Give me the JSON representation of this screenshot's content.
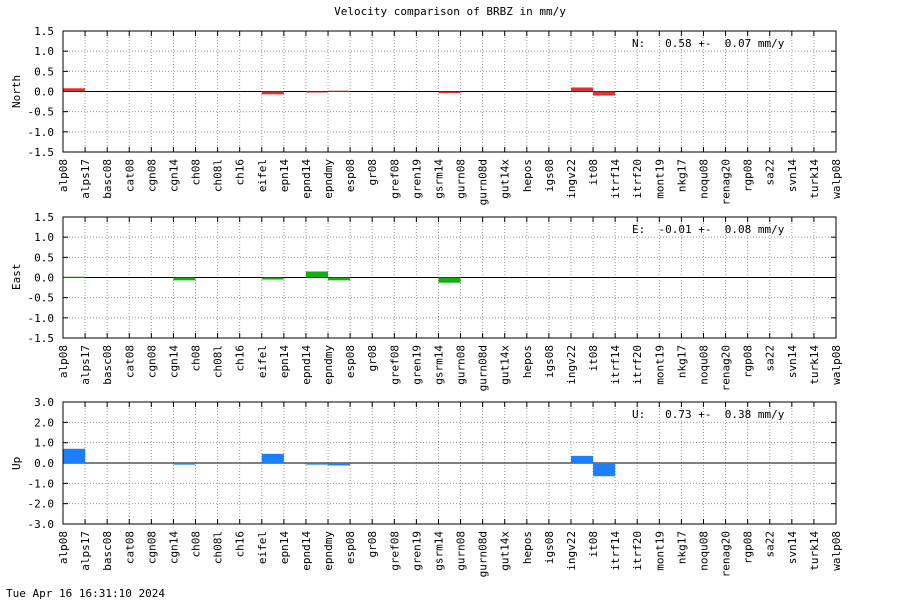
{
  "title": "Velocity comparison of BRBZ in mm/y",
  "footer": "Tue Apr 16 16:31:10 2024",
  "colors": {
    "north": "#e03030",
    "east": "#10b010",
    "up": "#1a80ff",
    "grid": "#999999"
  },
  "chart_data": [
    {
      "type": "bar",
      "ylabel": "North",
      "ylim": [
        -1.5,
        1.5
      ],
      "yticks": [
        "-1.5",
        "-1.0",
        "-0.5",
        "0.0",
        "0.5",
        "1.0",
        "1.5"
      ],
      "stat": "N:   0.58 +-  0.07 mm/y",
      "categories": [
        "alp08",
        "alps17",
        "basc08",
        "cat08",
        "cgn08",
        "cgn14",
        "ch08",
        "ch08l",
        "ch16",
        "eifel",
        "epn14",
        "epnd14",
        "epndmy",
        "esp08",
        "gr08",
        "gref08",
        "gren19",
        "gsrm14",
        "gurn08",
        "gurn08d",
        "gut14x",
        "hepos",
        "igs08",
        "ingv22",
        "it08",
        "itrf14",
        "itrf20",
        "mont19",
        "nkg17",
        "noqu08",
        "renag20",
        "rgp08",
        "sa22",
        "svn14",
        "turk14",
        "walp08"
      ],
      "values": [
        0.08,
        0,
        0,
        0,
        0,
        0,
        0,
        0,
        0,
        -0.07,
        0,
        -0.02,
        0.02,
        0,
        0,
        0,
        0,
        -0.04,
        0,
        0,
        0,
        0,
        0,
        0.1,
        -0.1,
        0,
        0,
        0,
        0,
        0,
        0,
        0,
        0,
        0,
        0,
        0
      ]
    },
    {
      "type": "bar",
      "ylabel": "East",
      "ylim": [
        -1.5,
        1.5
      ],
      "yticks": [
        "-1.5",
        "-1.0",
        "-0.5",
        "0.0",
        "0.5",
        "1.0",
        "1.5"
      ],
      "stat": "E:  -0.01 +-  0.08 mm/y",
      "categories": [
        "alp08",
        "alps17",
        "basc08",
        "cat08",
        "cgn08",
        "cgn14",
        "ch08",
        "ch08l",
        "ch16",
        "eifel",
        "epn14",
        "epnd14",
        "epndmy",
        "esp08",
        "gr08",
        "gref08",
        "gren19",
        "gsrm14",
        "gurn08",
        "gurn08d",
        "gut14x",
        "hepos",
        "igs08",
        "ingv22",
        "it08",
        "itrf14",
        "itrf20",
        "mont19",
        "nkg17",
        "noqu08",
        "renag20",
        "rgp08",
        "sa22",
        "svn14",
        "turk14",
        "walp08"
      ],
      "values": [
        0.02,
        0,
        0,
        0,
        0,
        -0.07,
        0,
        0,
        0,
        -0.05,
        0,
        0.15,
        -0.07,
        0,
        0,
        0,
        0,
        -0.13,
        0,
        0,
        0,
        0,
        0,
        0,
        0,
        0,
        0,
        0,
        0,
        0,
        0,
        0,
        0,
        0,
        0,
        0
      ]
    },
    {
      "type": "bar",
      "ylabel": "Up",
      "ylim": [
        -3.0,
        3.0
      ],
      "yticks": [
        "-3.0",
        "-2.0",
        "-1.0",
        "0.0",
        "1.0",
        "2.0",
        "3.0"
      ],
      "stat": "U:   0.73 +-  0.38 mm/y",
      "categories": [
        "alp08",
        "alps17",
        "basc08",
        "cat08",
        "cgn08",
        "cgn14",
        "ch08",
        "ch08l",
        "ch16",
        "eifel",
        "epn14",
        "epnd14",
        "epndmy",
        "esp08",
        "gr08",
        "gref08",
        "gren19",
        "gsrm14",
        "gurn08",
        "gurn08d",
        "gut14x",
        "hepos",
        "igs08",
        "ingv22",
        "it08",
        "itrf14",
        "itrf20",
        "mont19",
        "nkg17",
        "noqu08",
        "renag20",
        "rgp08",
        "sa22",
        "svn14",
        "turk14",
        "walp08"
      ],
      "values": [
        0.7,
        0,
        0,
        0,
        0,
        -0.08,
        0,
        0,
        0,
        0.45,
        0,
        -0.08,
        -0.12,
        0,
        0,
        0,
        0,
        0,
        0,
        0,
        0,
        0,
        0,
        0.35,
        -0.65,
        0,
        0,
        0,
        0,
        0,
        0,
        0,
        0,
        0,
        0,
        0
      ]
    }
  ]
}
